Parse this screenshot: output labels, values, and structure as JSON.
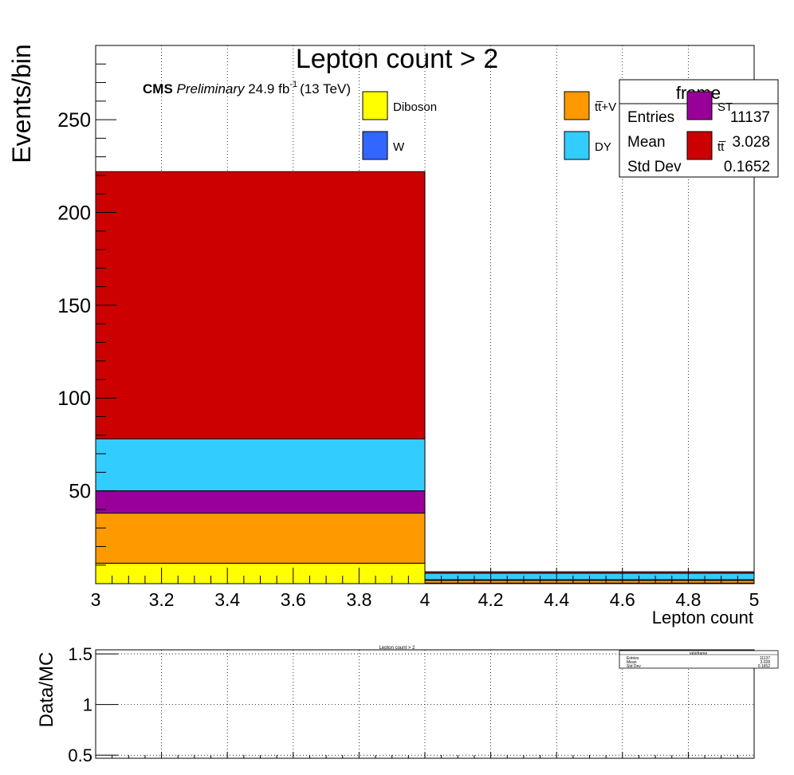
{
  "chart_data": [
    {
      "type": "bar",
      "stacked": true,
      "title": "Lepton count > 2",
      "xlabel": "Lepton count",
      "ylabel": "Events/bin",
      "xlim": [
        3,
        5
      ],
      "ylim": [
        0,
        290
      ],
      "x_ticks": [
        "3",
        "3.2",
        "3.4",
        "3.6",
        "3.8",
        "4",
        "4.2",
        "4.4",
        "4.6",
        "4.8",
        "5"
      ],
      "y_ticks": [
        "50",
        "100",
        "150",
        "200",
        "250"
      ],
      "grid": true,
      "bins": [
        [
          3,
          4
        ],
        [
          4,
          5
        ]
      ],
      "series": [
        {
          "name": "Diboson",
          "color": "#ffff00",
          "values": [
            11,
            0.3
          ]
        },
        {
          "name": "tt̅+V",
          "color": "#ff9900",
          "values": [
            27,
            1.5
          ]
        },
        {
          "name": "ST",
          "color": "#990099",
          "values": [
            12,
            0.3
          ]
        },
        {
          "name": "DY",
          "color": "#33ccff",
          "values": [
            28,
            3.5
          ]
        },
        {
          "name": "tt̅",
          "color": "#cc0000",
          "values": [
            144,
            0.8
          ]
        },
        {
          "name": "W",
          "color": "#3366ff",
          "values": [
            0,
            0
          ]
        }
      ],
      "annotation": {
        "cms": "CMS",
        "preliminary": "Preliminary",
        "lumi": "24.9 fb",
        "lumi_exp": "-1",
        "energy": "(13 TeV)"
      },
      "stats_box": {
        "title": "frame",
        "entries_label": "Entries",
        "entries": "11137",
        "mean_label": "Mean",
        "mean": "3.028",
        "stddev_label": "Std Dev",
        "stddev": "0.1652"
      }
    },
    {
      "type": "line",
      "title": "Lepton count > 2",
      "ylabel": "Data/MC",
      "xlim": [
        3,
        5
      ],
      "ylim": [
        0.47,
        1.54
      ],
      "y_ticks": [
        "0.5",
        "1",
        "1.5"
      ],
      "grid": true,
      "series": [],
      "stats_box": {
        "title": "ratioframe",
        "entries_label": "Entries",
        "entries": "11137",
        "mean_label": "Mean",
        "mean": "3.028",
        "stddev_label": "Std Dev",
        "stddev": "0.1652"
      }
    }
  ]
}
